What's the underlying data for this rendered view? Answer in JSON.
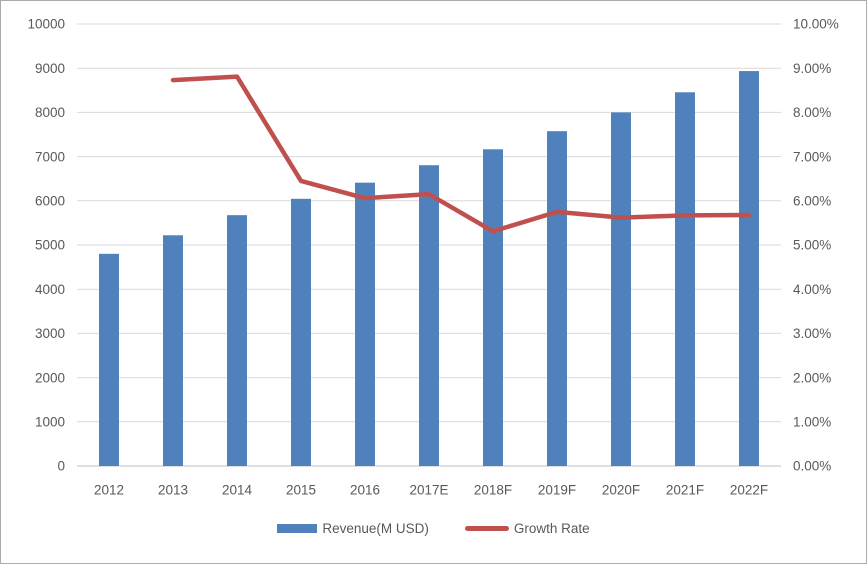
{
  "chart": {
    "background_color": "#FFFFFF",
    "frame_border_color": "#ABABAB"
  },
  "chart_data": {
    "type": "bar",
    "subtype": "combo-bar-line",
    "title": "",
    "categories": [
      "2012",
      "2013",
      "2014",
      "2015",
      "2016",
      "2017E",
      "2018F",
      "2019F",
      "2020F",
      "2021F",
      "2022F"
    ],
    "series": [
      {
        "name": "Revenue(M USD)",
        "type": "bar",
        "axis": "left",
        "color": "#4F81BD",
        "values": [
          4800,
          5220,
          5675,
          6045,
          6410,
          6805,
          7165,
          7575,
          8000,
          8455,
          8935
        ]
      },
      {
        "name": "Growth Rate",
        "type": "line",
        "axis": "right",
        "color": "#C0504D",
        "unit": "%",
        "values": [
          null,
          8.73,
          8.81,
          6.45,
          6.06,
          6.15,
          5.31,
          5.75,
          5.62,
          5.67,
          5.68
        ]
      }
    ],
    "left_axis": {
      "min": 0,
      "max": 10000,
      "step": 1000,
      "tick_labels": [
        "0",
        "1000",
        "2000",
        "3000",
        "4000",
        "5000",
        "6000",
        "7000",
        "8000",
        "9000",
        "10000"
      ]
    },
    "right_axis": {
      "min": 0,
      "max": 10,
      "step": 1,
      "tick_labels": [
        "0.00%",
        "1.00%",
        "2.00%",
        "3.00%",
        "4.00%",
        "5.00%",
        "6.00%",
        "7.00%",
        "8.00%",
        "9.00%",
        "10.00%"
      ]
    },
    "grid": true,
    "gridline_color": "#D9D9D9",
    "axis_line_color": "#BFBFBF",
    "tick_label_color": "#595959",
    "legend_position": "bottom"
  }
}
